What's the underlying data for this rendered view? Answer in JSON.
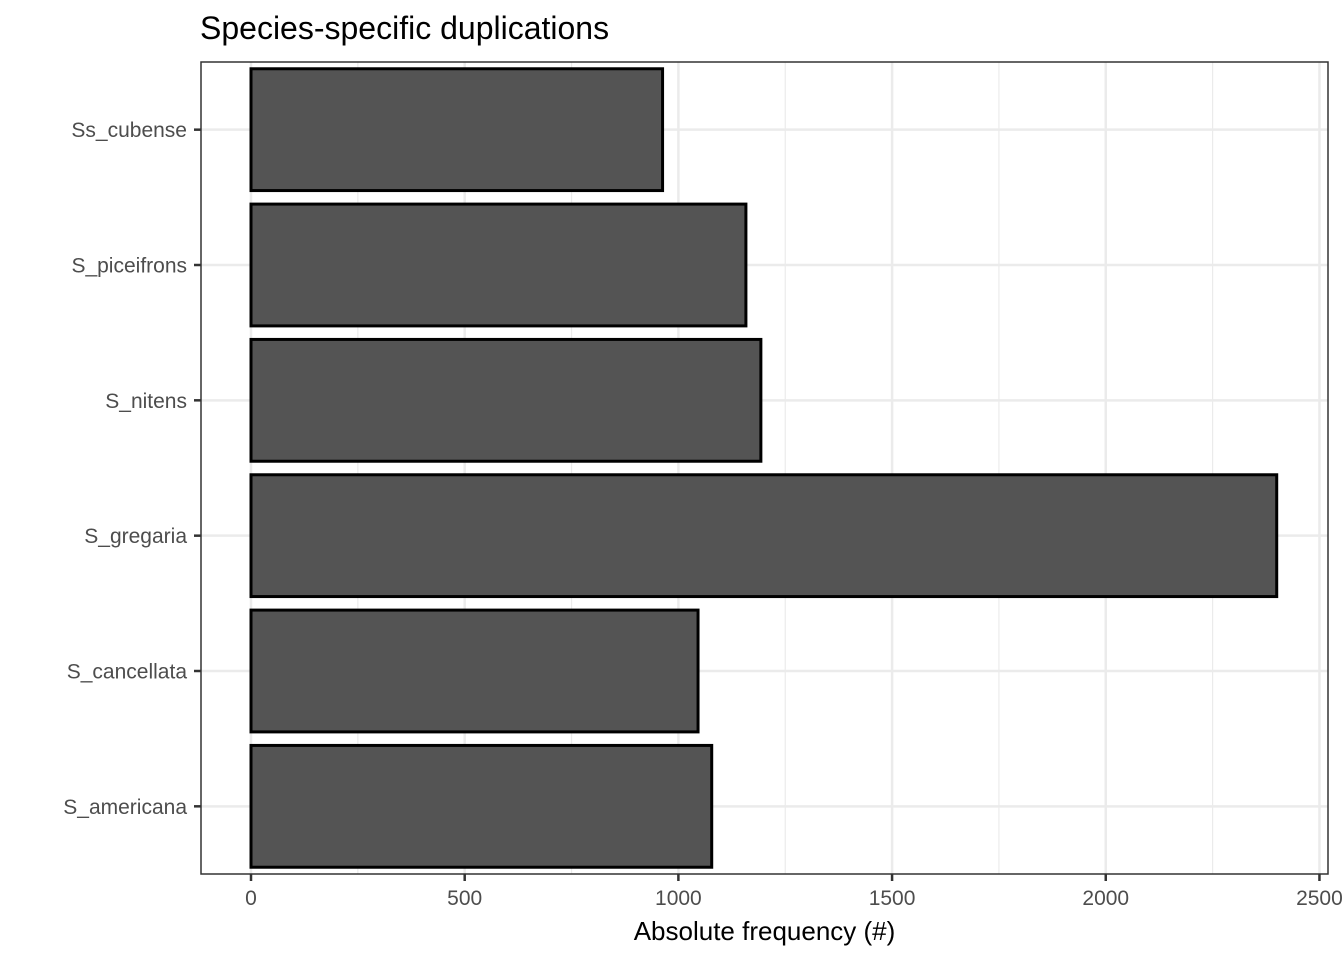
{
  "chart_data": {
    "type": "bar",
    "orientation": "horizontal",
    "title": "Species-specific duplications",
    "xlabel": "Absolute frequency (#)",
    "ylabel": "",
    "categories": [
      "S_americana",
      "S_cancellata",
      "S_gregaria",
      "S_nitens",
      "S_piceifrons",
      "Ss_cubense"
    ],
    "values": [
      1078,
      1046,
      2400,
      1193,
      1158,
      963
    ],
    "xlim": [
      -117,
      2520
    ],
    "xticks": [
      0,
      500,
      1000,
      1500,
      2000,
      2500
    ],
    "xtick_labels": [
      "0",
      "500",
      "1000",
      "1500",
      "2000",
      "2500"
    ],
    "minor_xticks": [
      250,
      750,
      1250,
      1750,
      2250
    ],
    "grid": true,
    "bar_fill": "#545454",
    "bar_outline": "#000000"
  }
}
